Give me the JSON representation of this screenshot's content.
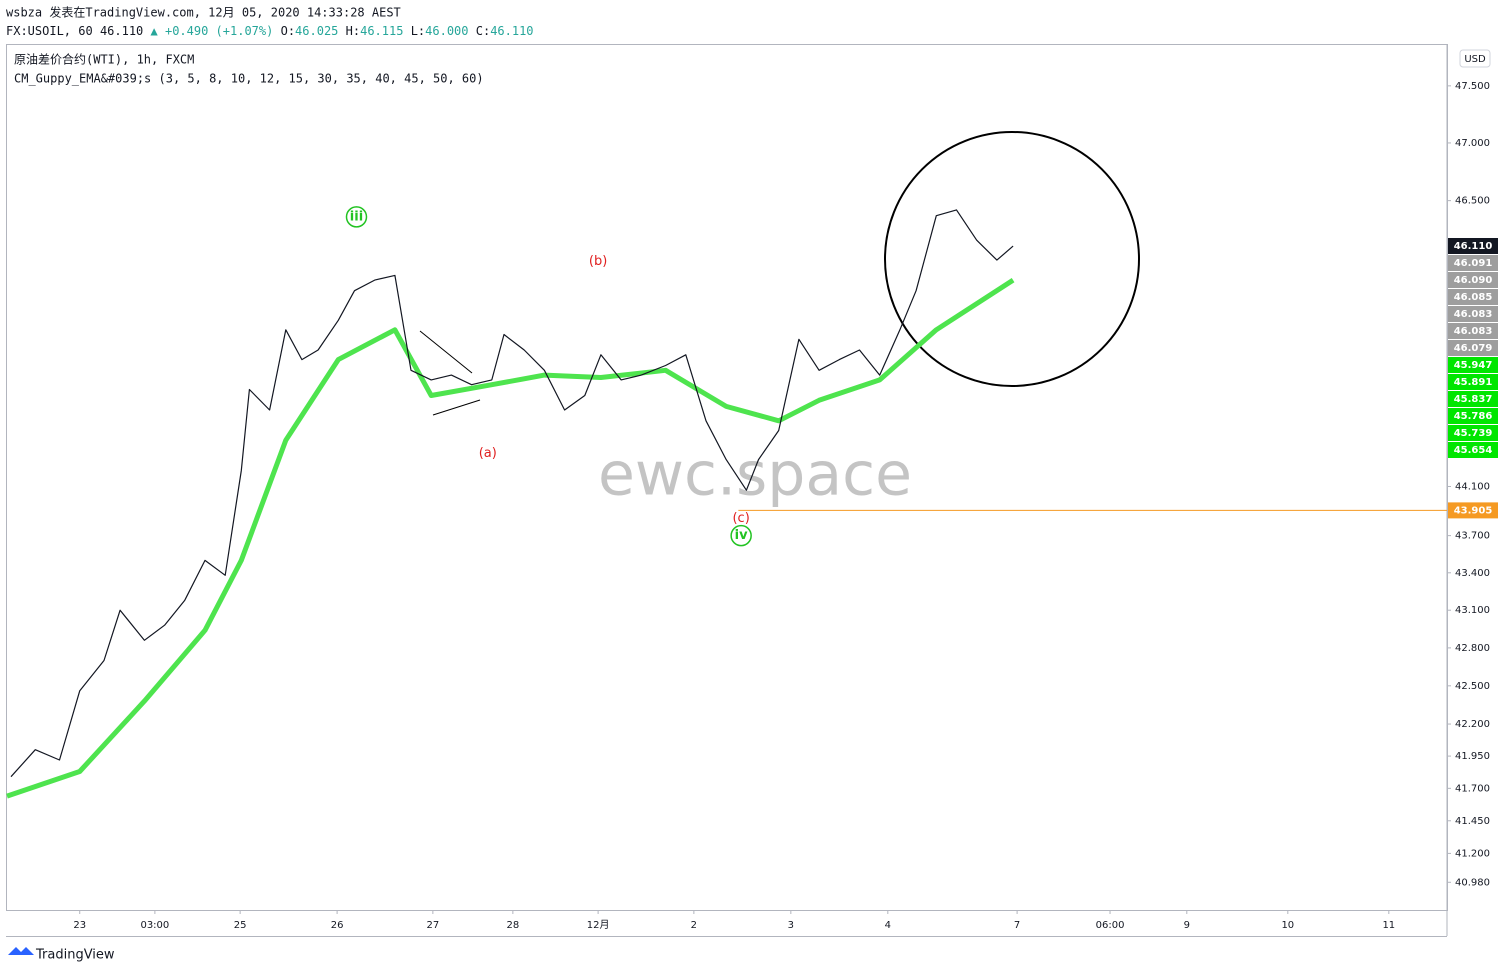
{
  "header": {
    "publisher": "wsbza 发表在TradingView.com, 12月 05, 2020 14:33:28 AEST",
    "symbol": "FX:USOIL, 60",
    "last": "46.110",
    "change": "+0.490 (+1.07%)",
    "ohlc": [
      "O:",
      "46.025",
      "H:",
      "46.115",
      "L:",
      "46.000",
      "C:",
      "46.110"
    ],
    "instrument": "原油差价合约(WTI), 1h, FXCM",
    "indicator": "CM_Guppy_EMA&#039;s (3, 5, 8, 10, 12, 15, 30, 35, 40, 45, 50, 60)",
    "currency": "USD",
    "watermark": "ewc.space",
    "footer": "TradingView"
  },
  "chart_data": {
    "type": "line",
    "log_scale": true,
    "xlim": [
      0,
      356.4
    ],
    "ylim": [
      40.77,
      47.87
    ],
    "xticks": [
      {
        "value": 18,
        "label": "23"
      },
      {
        "value": 36.6,
        "label": "03:00"
      },
      {
        "value": 57.7,
        "label": "25"
      },
      {
        "value": 81.7,
        "label": "26"
      },
      {
        "value": 105.4,
        "label": "27"
      },
      {
        "value": 125.2,
        "label": "28"
      },
      {
        "value": 146.3,
        "label": "12月"
      },
      {
        "value": 170,
        "label": "2"
      },
      {
        "value": 194,
        "label": "3"
      },
      {
        "value": 218,
        "label": "4"
      },
      {
        "value": 250,
        "label": "7"
      },
      {
        "value": 273,
        "label": "06:00"
      },
      {
        "value": 292,
        "label": "9"
      },
      {
        "value": 317,
        "label": "10"
      },
      {
        "value": 342,
        "label": "11"
      }
    ],
    "yticks": [
      {
        "value": 47.5,
        "label": "47.500"
      },
      {
        "value": 47,
        "label": "47.000"
      },
      {
        "value": 46.5,
        "label": "46.500"
      },
      {
        "value": 44.1,
        "label": "44.100"
      },
      {
        "value": 43.7,
        "label": "43.700"
      },
      {
        "value": 43.4,
        "label": "43.400"
      },
      {
        "value": 43.1,
        "label": "43.100"
      },
      {
        "value": 42.8,
        "label": "42.800"
      },
      {
        "value": 42.5,
        "label": "42.500"
      },
      {
        "value": 42.2,
        "label": "42.200"
      },
      {
        "value": 41.95,
        "label": "41.950"
      },
      {
        "value": 41.7,
        "label": "41.700"
      },
      {
        "value": 41.45,
        "label": "41.450"
      },
      {
        "value": 41.2,
        "label": "41.200"
      },
      {
        "value": 40.98,
        "label": "40.980"
      }
    ],
    "series": [
      {
        "color": "#131722",
        "x": [
          1,
          7,
          13,
          18,
          24,
          28,
          34,
          39,
          44,
          49,
          54,
          58,
          60,
          65,
          69,
          73,
          77,
          82,
          86,
          91,
          96,
          100,
          105,
          110,
          115,
          120,
          123,
          128,
          133,
          138,
          143,
          147,
          152,
          157,
          163,
          168,
          173,
          178,
          183,
          186,
          191,
          196,
          201,
          206,
          211,
          216,
          221,
          225,
          230,
          235,
          240,
          245,
          249
        ],
        "values": [
          41.79,
          42.0,
          41.92,
          42.46,
          42.7,
          43.1,
          42.86,
          42.98,
          43.18,
          43.5,
          43.38,
          44.23,
          44.9,
          44.73,
          45.4,
          45.15,
          45.23,
          45.48,
          45.73,
          45.82,
          45.86,
          45.06,
          44.98,
          45.02,
          44.94,
          44.98,
          45.36,
          45.23,
          45.06,
          44.73,
          44.85,
          45.19,
          44.98,
          45.02,
          45.1,
          45.19,
          44.64,
          44.32,
          44.07,
          44.32,
          44.56,
          45.32,
          45.06,
          45.15,
          45.23,
          45.02,
          45.4,
          45.73,
          46.37,
          46.42,
          46.16,
          45.99,
          46.11
        ]
      },
      {
        "color": "#4ee44e",
        "x": [
          0,
          18,
          34,
          49,
          58,
          69,
          82,
          96,
          105,
          120,
          133,
          147,
          163,
          178,
          191,
          201,
          216,
          230,
          249
        ],
        "values": [
          41.64,
          41.83,
          42.38,
          42.94,
          43.5,
          44.48,
          45.15,
          45.4,
          44.85,
          44.94,
          45.02,
          45.0,
          45.06,
          44.76,
          44.64,
          44.81,
          44.98,
          45.4,
          45.82
        ]
      }
    ],
    "annotations": [
      {
        "text": "iii",
        "color": "#22c322",
        "x": 86.5,
        "y": 46.36
      },
      {
        "text": "(a)",
        "color": "#e02020",
        "x": 119,
        "y": 44.37
      },
      {
        "text": "(b)",
        "color": "#e02020",
        "x": 146.3,
        "y": 45.98
      },
      {
        "text": "(c)",
        "color": "#e02020",
        "x": 181.7,
        "y": 43.84
      },
      {
        "text": "iv",
        "color": "#22c322",
        "x": 181.7,
        "y": 43.7
      }
    ],
    "price_tags": [
      {
        "value": 46.11,
        "label": "46.110",
        "color": "#131722"
      },
      {
        "value": 46.091,
        "label": "46.091",
        "color": "#9e9e9e"
      },
      {
        "value": 46.09,
        "label": "46.090",
        "color": "#9e9e9e"
      },
      {
        "value": 46.085,
        "label": "46.085",
        "color": "#9e9e9e"
      },
      {
        "value": 46.083,
        "label": "46.083",
        "color": "#9e9e9e"
      },
      {
        "value": 46.083,
        "label": "46.083",
        "color": "#9e9e9e"
      },
      {
        "value": 46.079,
        "label": "46.079",
        "color": "#9e9e9e"
      },
      {
        "value": 45.947,
        "label": "45.947",
        "color": "#00e600"
      },
      {
        "value": 45.891,
        "label": "45.891",
        "color": "#00e600"
      },
      {
        "value": 45.837,
        "label": "45.837",
        "color": "#00e600"
      },
      {
        "value": 45.786,
        "label": "45.786",
        "color": "#00e600"
      },
      {
        "value": 45.739,
        "label": "45.739",
        "color": "#00e600"
      },
      {
        "value": 45.654,
        "label": "45.654",
        "color": "#00e600"
      },
      {
        "value": 43.905,
        "label": "43.905",
        "color": "#f59a23",
        "line": true
      }
    ]
  }
}
